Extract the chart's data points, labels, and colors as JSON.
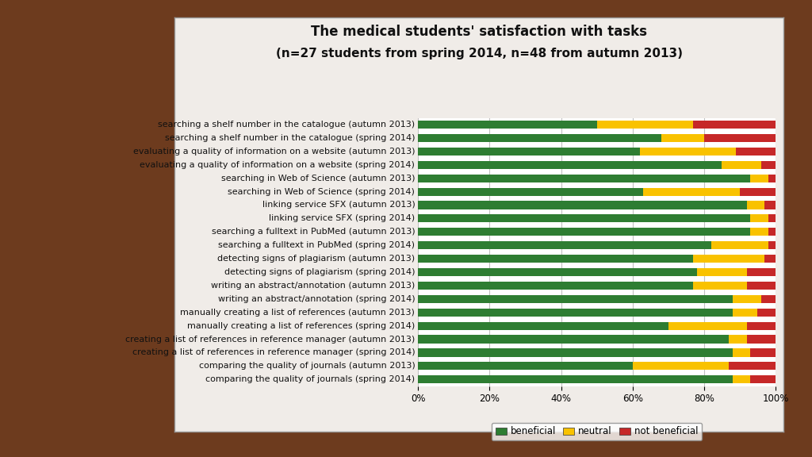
{
  "title": "The medical students' satisfaction with tasks",
  "subtitle": "(n=27 students from spring 2014, n=48 from autumn 2013)",
  "categories": [
    "searching a shelf number in the catalogue (autumn 2013)",
    "searching a shelf number in the catalogue (spring 2014)",
    "evaluating a quality of information on a website (autumn 2013)",
    "evaluating a quality of information on a website (spring 2014)",
    "searching in Web of Science (autumn 2013)",
    "searching in Web of Science (spring 2014)",
    "linking service SFX (autumn 2013)",
    "linking service SFX (spring 2014)",
    "searching a fulltext in PubMed (autumn 2013)",
    "searching a fulltext in PubMed (spring 2014)",
    "detecting signs of plagiarism (autumn 2013)",
    "detecting signs of plagiarism (spring 2014)",
    "writing an abstract/annotation (autumn 2013)",
    "writing an abstract/annotation (spring 2014)",
    "manually creating a list of references (autumn 2013)",
    "manually creating a list of references (spring 2014)",
    "creating a list of references in reference manager (autumn 2013)",
    "creating a list of references in reference manager (spring 2014)",
    "comparing the quality of journals (autumn 2013)",
    "comparing the quality of journals (spring 2014)"
  ],
  "beneficial": [
    50,
    68,
    62,
    85,
    93,
    63,
    92,
    93,
    93,
    82,
    77,
    78,
    77,
    88,
    88,
    70,
    87,
    88,
    60,
    88
  ],
  "neutral": [
    27,
    12,
    27,
    11,
    5,
    27,
    5,
    5,
    5,
    16,
    20,
    14,
    15,
    8,
    7,
    22,
    5,
    5,
    27,
    5
  ],
  "not_beneficial": [
    23,
    20,
    11,
    4,
    2,
    10,
    3,
    2,
    2,
    2,
    3,
    8,
    8,
    4,
    5,
    8,
    8,
    7,
    13,
    7
  ],
  "color_beneficial": "#2e7d32",
  "color_neutral": "#f9c200",
  "color_not_beneficial": "#c62828",
  "background_outer": "#6d3b1e",
  "background_inner": "#f0ece8",
  "background_plot": "#ffffff",
  "grid_color": "#c0c0c0",
  "bar_height": 0.6,
  "title_fontsize": 12,
  "subtitle_fontsize": 11,
  "label_fontsize": 8,
  "tick_fontsize": 8.5,
  "legend_fontsize": 8.5
}
